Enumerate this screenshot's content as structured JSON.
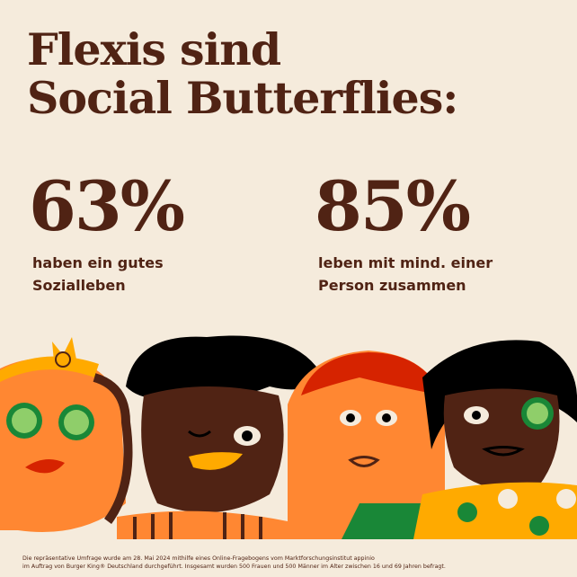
{
  "headline": {
    "line1": "Flexis sind",
    "line2": "Social Butterflies:"
  },
  "stats": [
    {
      "value": "63%",
      "line1": "haben ein gutes",
      "line2": "Sozialleben"
    },
    {
      "value": "85%",
      "line1": "leben mit mind. einer",
      "line2": "Person zusammen"
    }
  ],
  "footnote": {
    "line1": "Die repräsentative Umfrage wurde am 28. Mai 2024 mithilfe eines Online-Fragebogens vom Marktforschungsinstitut appinio",
    "line2": "im Auftrag von Burger King® Deutschland durchgeführt. Insgesamt wurden 500 Frauen und 500 Männer im Alter zwischen 16 und 69 Jahren befragt."
  },
  "colors": {
    "background": "#f5ebdc",
    "brown": "#502314",
    "orange": "#ff8732",
    "red": "#d62300",
    "yellow": "#ffaa00",
    "green": "#198737"
  }
}
